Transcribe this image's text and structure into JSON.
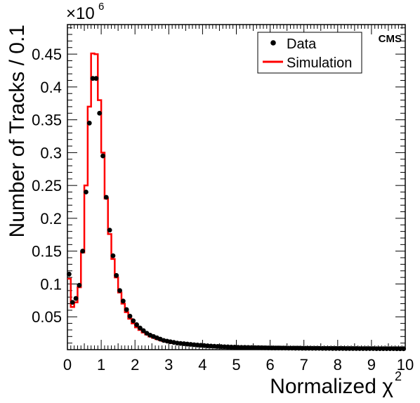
{
  "chart_data": {
    "type": "histogram",
    "title": "",
    "experiment_label": "CMS",
    "xlabel": "Normalized χ",
    "xlabel_superscript": "2",
    "ylabel": "Number of Tracks / 0.1",
    "y_multiplier": "×10",
    "y_multiplier_exponent": "6",
    "xlim": [
      0,
      10
    ],
    "ylim": [
      0,
      0.495
    ],
    "bin_width": 0.1,
    "x_ticks": [
      "0",
      "1",
      "2",
      "3",
      "4",
      "5",
      "6",
      "7",
      "8",
      "9",
      "10"
    ],
    "y_ticks": [
      "0.05",
      "0.1",
      "0.15",
      "0.2",
      "0.25",
      "0.3",
      "0.35",
      "0.4",
      "0.45"
    ],
    "legend": {
      "position": "top-right",
      "entries": [
        {
          "label": "Data",
          "marker": "dot",
          "color": "#000000"
        },
        {
          "label": "Simulation",
          "marker": "line",
          "color": "#ff0000"
        }
      ]
    },
    "series": [
      {
        "name": "Data",
        "style": "points",
        "color": "#000000",
        "x": [
          0.05,
          0.15,
          0.25,
          0.35,
          0.45,
          0.55,
          0.65,
          0.75,
          0.85,
          0.95,
          1.05,
          1.15,
          1.25,
          1.35,
          1.45,
          1.55,
          1.65,
          1.75,
          1.85,
          1.95,
          2.05,
          2.15,
          2.25,
          2.35,
          2.45,
          2.55,
          2.65,
          2.75,
          2.85,
          2.95,
          3.05,
          3.15,
          3.25,
          3.35,
          3.45,
          3.55,
          3.65,
          3.75,
          3.85,
          3.95,
          4.05,
          4.15,
          4.25,
          4.35,
          4.45,
          4.55,
          4.65,
          4.75,
          4.85,
          4.95,
          5.05,
          5.15,
          5.25,
          5.35,
          5.45,
          5.55,
          5.65,
          5.75,
          5.85,
          5.95,
          6.05,
          6.15,
          6.25,
          6.35,
          6.45,
          6.55,
          6.65,
          6.75,
          6.85,
          6.95,
          7.05,
          7.15,
          7.25,
          7.35,
          7.45,
          7.55,
          7.65,
          7.75,
          7.85,
          7.95,
          8.05,
          8.15,
          8.25,
          8.35,
          8.45,
          8.55,
          8.65,
          8.75,
          8.85,
          8.95,
          9.05,
          9.15,
          9.25,
          9.35,
          9.45,
          9.55,
          9.65,
          9.75,
          9.85,
          9.95
        ],
        "values": [
          0.115,
          0.072,
          0.078,
          0.098,
          0.15,
          0.24,
          0.345,
          0.413,
          0.413,
          0.36,
          0.295,
          0.232,
          0.182,
          0.143,
          0.113,
          0.09,
          0.074,
          0.061,
          0.051,
          0.044,
          0.038,
          0.033,
          0.029,
          0.025,
          0.022,
          0.02,
          0.018,
          0.016,
          0.014,
          0.013,
          0.012,
          0.011,
          0.01,
          0.0095,
          0.009,
          0.0085,
          0.008,
          0.0075,
          0.007,
          0.0066,
          0.0062,
          0.0058,
          0.0055,
          0.0052,
          0.0049,
          0.0046,
          0.0044,
          0.0042,
          0.004,
          0.0038,
          0.0036,
          0.0035,
          0.0034,
          0.0033,
          0.0032,
          0.0031,
          0.003,
          0.0029,
          0.0028,
          0.0027,
          0.0026,
          0.0025,
          0.0025,
          0.0024,
          0.0024,
          0.0023,
          0.0023,
          0.0022,
          0.0022,
          0.0021,
          0.0021,
          0.0021,
          0.002,
          0.002,
          0.002,
          0.0019,
          0.0019,
          0.0019,
          0.0018,
          0.0018,
          0.0018,
          0.0018,
          0.0017,
          0.0017,
          0.0017,
          0.0017,
          0.0016,
          0.0016,
          0.0016,
          0.0016,
          0.0016,
          0.0015,
          0.0015,
          0.0015,
          0.0015,
          0.0015,
          0.0015,
          0.0014,
          0.0014,
          0.0014
        ]
      },
      {
        "name": "Simulation",
        "style": "step",
        "color": "#ff0000",
        "x_edges_start": 0,
        "values": [
          0.108,
          0.065,
          0.072,
          0.095,
          0.148,
          0.25,
          0.37,
          0.451,
          0.45,
          0.38,
          0.3,
          0.23,
          0.176,
          0.138,
          0.11,
          0.087,
          0.07,
          0.057,
          0.047,
          0.04,
          0.034,
          0.03,
          0.026,
          0.023,
          0.02,
          0.018,
          0.016,
          0.0145,
          0.013,
          0.012,
          0.011,
          0.01,
          0.0093,
          0.0087,
          0.0082,
          0.0077,
          0.0072,
          0.0068,
          0.0064,
          0.006,
          0.0057,
          0.0054,
          0.0051,
          0.0048,
          0.0046,
          0.0044,
          0.0042,
          0.004,
          0.0038,
          0.0036,
          0.0035,
          0.0034,
          0.0033,
          0.0032,
          0.0031,
          0.003,
          0.0029,
          0.0028,
          0.0027,
          0.0026,
          0.0026,
          0.0025,
          0.0024,
          0.0024,
          0.0023,
          0.0023,
          0.0022,
          0.0022,
          0.0021,
          0.0021,
          0.002,
          0.002,
          0.002,
          0.0019,
          0.0019,
          0.0019,
          0.0018,
          0.0018,
          0.0018,
          0.0017,
          0.0017,
          0.0017,
          0.0017,
          0.0016,
          0.0016,
          0.0016,
          0.0016,
          0.0016,
          0.0015,
          0.0015,
          0.0015,
          0.0015,
          0.0015,
          0.0014,
          0.0014,
          0.0014,
          0.0014,
          0.0014,
          0.0014,
          0.0013
        ]
      }
    ]
  }
}
